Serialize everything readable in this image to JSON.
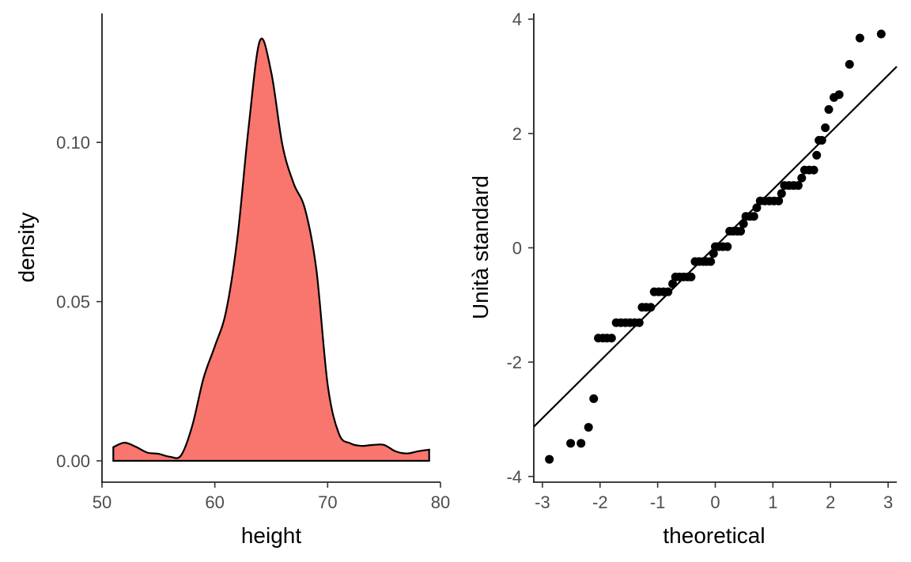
{
  "chart_data": [
    {
      "type": "area",
      "title": "",
      "xlabel": "height",
      "ylabel": "density",
      "xlim": [
        50,
        80
      ],
      "ylim": [
        0,
        0.1338
      ],
      "xticks": [
        "50",
        "60",
        "70",
        "80"
      ],
      "yticks": [
        "0.00",
        "0.05",
        "0.10"
      ],
      "fill_color": "#F8766D",
      "grid": false,
      "series": [
        {
          "x": [
            51,
            52,
            53,
            54,
            55,
            56,
            57,
            58,
            59,
            60,
            61,
            62,
            63,
            64,
            65,
            66,
            67,
            68,
            69,
            70,
            71,
            72,
            73,
            74,
            75,
            76,
            77,
            78,
            79
          ],
          "values": [
            0.0043,
            0.0057,
            0.0044,
            0.0026,
            0.0022,
            0.0013,
            0.0017,
            0.011,
            0.026,
            0.036,
            0.047,
            0.07,
            0.105,
            0.132,
            0.122,
            0.099,
            0.087,
            0.079,
            0.06,
            0.024,
            0.0085,
            0.0055,
            0.0047,
            0.005,
            0.005,
            0.003,
            0.0023,
            0.003,
            0.0035
          ]
        }
      ]
    },
    {
      "type": "scatter",
      "title": "",
      "xlabel": "theoretical",
      "ylabel": "Unità standard",
      "xlim": [
        -3.15,
        3.15
      ],
      "ylim": [
        -4.1,
        4.1
      ],
      "xticks": [
        "-3",
        "-2",
        "-1",
        "0",
        "1",
        "2",
        "3"
      ],
      "yticks": [
        "-4",
        "-2",
        "0",
        "2",
        "4"
      ],
      "grid": false,
      "reference_line": {
        "slope": 1.0,
        "intercept": 0.02
      },
      "points": [
        [
          -2.88,
          -3.7
        ],
        [
          -2.51,
          -3.42
        ],
        [
          -2.33,
          -3.42
        ],
        [
          -2.2,
          -3.14
        ],
        [
          -2.11,
          -2.64
        ],
        [
          -2.03,
          -1.58
        ],
        [
          -1.95,
          -1.58
        ],
        [
          -1.88,
          -1.58
        ],
        [
          -1.8,
          -1.58
        ],
        [
          -1.72,
          -1.31
        ],
        [
          -1.64,
          -1.31
        ],
        [
          -1.56,
          -1.31
        ],
        [
          -1.48,
          -1.31
        ],
        [
          -1.4,
          -1.31
        ],
        [
          -1.32,
          -1.31
        ],
        [
          -1.27,
          -1.04
        ],
        [
          -1.2,
          -1.04
        ],
        [
          -1.12,
          -1.04
        ],
        [
          -1.06,
          -0.77
        ],
        [
          -0.98,
          -0.77
        ],
        [
          -0.9,
          -0.77
        ],
        [
          -0.82,
          -0.77
        ],
        [
          -0.74,
          -0.63
        ],
        [
          -0.69,
          -0.51
        ],
        [
          -0.62,
          -0.51
        ],
        [
          -0.55,
          -0.51
        ],
        [
          -0.48,
          -0.51
        ],
        [
          -0.42,
          -0.51
        ],
        [
          -0.35,
          -0.24
        ],
        [
          -0.28,
          -0.24
        ],
        [
          -0.21,
          -0.24
        ],
        [
          -0.15,
          -0.24
        ],
        [
          -0.08,
          -0.24
        ],
        [
          -0.03,
          -0.1
        ],
        [
          0.0,
          0.02
        ],
        [
          0.06,
          0.02
        ],
        [
          0.13,
          0.02
        ],
        [
          0.21,
          0.02
        ],
        [
          0.25,
          0.29
        ],
        [
          0.31,
          0.29
        ],
        [
          0.38,
          0.29
        ],
        [
          0.44,
          0.29
        ],
        [
          0.49,
          0.42
        ],
        [
          0.53,
          0.55
        ],
        [
          0.6,
          0.55
        ],
        [
          0.67,
          0.55
        ],
        [
          0.72,
          0.7
        ],
        [
          0.78,
          0.82
        ],
        [
          0.86,
          0.82
        ],
        [
          0.94,
          0.82
        ],
        [
          1.02,
          0.82
        ],
        [
          1.1,
          0.82
        ],
        [
          1.15,
          0.95
        ],
        [
          1.2,
          1.09
        ],
        [
          1.28,
          1.09
        ],
        [
          1.36,
          1.09
        ],
        [
          1.44,
          1.09
        ],
        [
          1.5,
          1.22
        ],
        [
          1.55,
          1.36
        ],
        [
          1.63,
          1.36
        ],
        [
          1.71,
          1.36
        ],
        [
          1.76,
          1.62
        ],
        [
          1.8,
          1.88
        ],
        [
          1.85,
          1.88
        ],
        [
          1.91,
          2.1
        ],
        [
          1.97,
          2.42
        ],
        [
          2.06,
          2.63
        ],
        [
          2.15,
          2.68
        ],
        [
          2.33,
          3.21
        ],
        [
          2.51,
          3.67
        ],
        [
          2.88,
          3.74
        ]
      ]
    }
  ]
}
